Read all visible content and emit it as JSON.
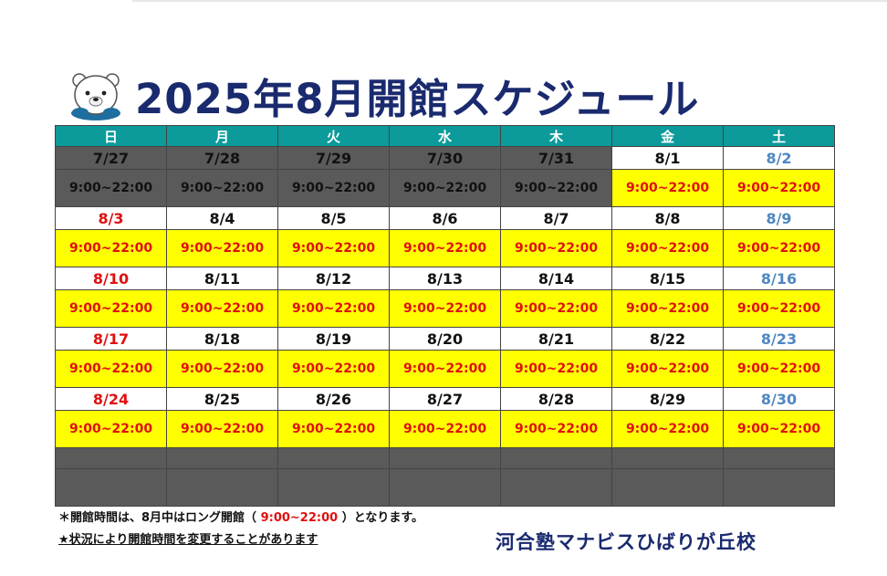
{
  "title": "2025年8月開館スケジュール",
  "weekdays": [
    "日",
    "月",
    "火",
    "水",
    "木",
    "金",
    "土"
  ],
  "weeks": [
    {
      "dates": [
        "7/27",
        "7/28",
        "7/29",
        "7/30",
        "7/31",
        "8/1",
        "8/2"
      ],
      "hours": [
        "9:00~22:00",
        "9:00~22:00",
        "9:00~22:00",
        "9:00~22:00",
        "9:00~22:00",
        "9:00~22:00",
        "9:00~22:00"
      ],
      "closed": [
        true,
        true,
        true,
        true,
        true,
        false,
        false
      ]
    },
    {
      "dates": [
        "8/3",
        "8/4",
        "8/5",
        "8/6",
        "8/7",
        "8/8",
        "8/9"
      ],
      "hours": [
        "9:00~22:00",
        "9:00~22:00",
        "9:00~22:00",
        "9:00~22:00",
        "9:00~22:00",
        "9:00~22:00",
        "9:00~22:00"
      ],
      "closed": [
        false,
        false,
        false,
        false,
        false,
        false,
        false
      ]
    },
    {
      "dates": [
        "8/10",
        "8/11",
        "8/12",
        "8/13",
        "8/14",
        "8/15",
        "8/16"
      ],
      "hours": [
        "9:00~22:00",
        "9:00~22:00",
        "9:00~22:00",
        "9:00~22:00",
        "9:00~22:00",
        "9:00~22:00",
        "9:00~22:00"
      ],
      "closed": [
        false,
        false,
        false,
        false,
        false,
        false,
        false
      ]
    },
    {
      "dates": [
        "8/17",
        "8/18",
        "8/19",
        "8/20",
        "8/21",
        "8/22",
        "8/23"
      ],
      "hours": [
        "9:00~22:00",
        "9:00~22:00",
        "9:00~22:00",
        "9:00~22:00",
        "9:00~22:00",
        "9:00~22:00",
        "9:00~22:00"
      ],
      "closed": [
        false,
        false,
        false,
        false,
        false,
        false,
        false
      ]
    },
    {
      "dates": [
        "8/24",
        "8/25",
        "8/26",
        "8/27",
        "8/28",
        "8/29",
        "8/30"
      ],
      "hours": [
        "9:00~22:00",
        "9:00~22:00",
        "9:00~22:00",
        "9:00~22:00",
        "9:00~22:00",
        "9:00~22:00",
        "9:00~22:00"
      ],
      "closed": [
        false,
        false,
        false,
        false,
        false,
        false,
        false
      ]
    }
  ],
  "notes": {
    "note1_prefix": "＊開館時間は、8月中はロング開館（ ",
    "note1_highlight": "9:00~22:00",
    "note1_suffix": " ）となります。",
    "note2": "★状況により開館時間を変更することがあります"
  },
  "school_name": "河合塾マナビスひばりが丘校",
  "colors": {
    "title": "#1a2a6e",
    "header_bg": "#0c9a9a",
    "hours_bg": "#ffff00",
    "closed_bg": "#5a5a5a",
    "sunday": "#e01010",
    "saturday": "#4f87c2"
  },
  "mascot_icon": "polar-bear-mascot-icon"
}
